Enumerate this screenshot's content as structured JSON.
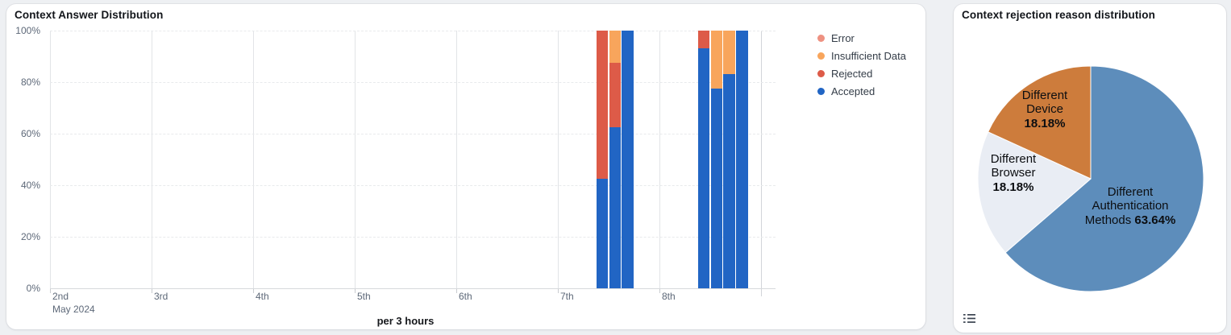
{
  "left_panel": {
    "title": "Context Answer Distribution",
    "x_axis_title": "per 3 hours",
    "y_ticks": [
      "0%",
      "20%",
      "40%",
      "60%",
      "80%",
      "100%"
    ],
    "x_ticks": [
      {
        "label": "2nd",
        "sublabel": "May 2024"
      },
      {
        "label": "3rd",
        "sublabel": ""
      },
      {
        "label": "4th",
        "sublabel": ""
      },
      {
        "label": "5th",
        "sublabel": ""
      },
      {
        "label": "6th",
        "sublabel": ""
      },
      {
        "label": "7th",
        "sublabel": ""
      },
      {
        "label": "8th",
        "sublabel": ""
      }
    ],
    "legend": [
      {
        "label": "Error",
        "color": "#ee9181"
      },
      {
        "label": "Insufficient Data",
        "color": "#f8a55c"
      },
      {
        "label": "Rejected",
        "color": "#dd5b48"
      },
      {
        "label": "Accepted",
        "color": "#2165c4"
      }
    ]
  },
  "right_panel": {
    "title": "Context rejection reason distribution",
    "icons": {
      "view_data": "list-icon"
    }
  },
  "chart_data": [
    {
      "type": "bar",
      "title": "Context Answer Distribution",
      "stacked": true,
      "normalized": "percent",
      "interval": "per 3 hours",
      "ylim": [
        0,
        100
      ],
      "ytick_step": 20,
      "grid": true,
      "legend_position": "right",
      "x_axis": {
        "tick_labels": [
          "2nd",
          "3rd",
          "4th",
          "5th",
          "6th",
          "7th",
          "8th"
        ],
        "start_label": "2nd May 2024",
        "slots_per_day": 8
      },
      "series_order_bottom_to_top": [
        "Accepted",
        "Rejected",
        "Insufficient Data",
        "Error"
      ],
      "bars": [
        {
          "day": "7th",
          "slot_of_day": 3,
          "time": "09:00",
          "Accepted": 42.5,
          "Rejected": 57.5,
          "Insufficient Data": 0,
          "Error": 0
        },
        {
          "day": "7th",
          "slot_of_day": 4,
          "time": "12:00",
          "Accepted": 62.5,
          "Rejected": 25,
          "Insufficient Data": 12.5,
          "Error": 0
        },
        {
          "day": "7th",
          "slot_of_day": 5,
          "time": "15:00",
          "Accepted": 100,
          "Rejected": 0,
          "Insufficient Data": 0,
          "Error": 0
        },
        {
          "day": "8th",
          "slot_of_day": 3,
          "time": "09:00",
          "Accepted": 93,
          "Rejected": 7,
          "Insufficient Data": 0,
          "Error": 0
        },
        {
          "day": "8th",
          "slot_of_day": 4,
          "time": "12:00",
          "Accepted": 77.5,
          "Rejected": 0,
          "Insufficient Data": 22.5,
          "Error": 0
        },
        {
          "day": "8th",
          "slot_of_day": 5,
          "time": "15:00",
          "Accepted": 83,
          "Rejected": 0,
          "Insufficient Data": 17,
          "Error": 0
        },
        {
          "day": "8th",
          "slot_of_day": 6,
          "time": "18:00",
          "Accepted": 100,
          "Rejected": 0,
          "Insufficient Data": 0,
          "Error": 0
        }
      ]
    },
    {
      "type": "pie",
      "title": "Context rejection reason distribution",
      "start_angle": "12-oclock",
      "direction": "clockwise",
      "labels_inside": true,
      "slices": [
        {
          "label": "Different Authentication Methods",
          "value_pct": 63.64,
          "pct_label": "63.64%",
          "color": "#5d8dbb",
          "label_lines": [
            "Different",
            "Authentication",
            "Methods"
          ],
          "pct_inline": true
        },
        {
          "label": "Different Browser",
          "value_pct": 18.18,
          "pct_label": "18.18%",
          "color": "#e9edf4",
          "label_lines": [
            "Different",
            "Browser"
          ],
          "pct_inline": false
        },
        {
          "label": "Different Device",
          "value_pct": 18.18,
          "pct_label": "18.18%",
          "color": "#cd7c3c",
          "label_lines": [
            "Different",
            "Device"
          ],
          "pct_inline": false
        }
      ]
    }
  ]
}
